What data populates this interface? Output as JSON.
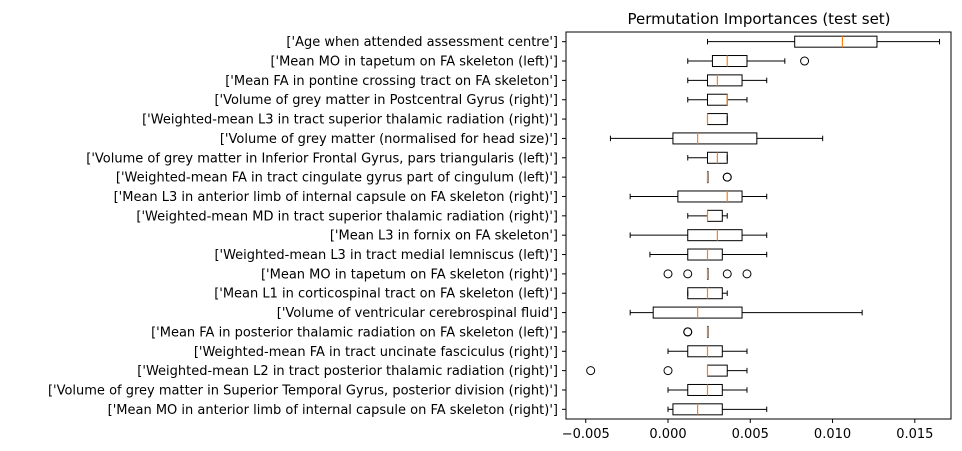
{
  "chart_data": {
    "type": "boxplot",
    "orientation": "horizontal",
    "title": "Permutation Importances (test set)",
    "xlabel": "",
    "ylabel": "",
    "xlim": [
      -0.0062,
      0.0172
    ],
    "x_ticks": [
      -0.005,
      0.0,
      0.005,
      0.01,
      0.015
    ],
    "x_tick_labels": [
      "−0.005",
      "0.000",
      "0.005",
      "0.010",
      "0.015"
    ],
    "grid": false,
    "box_color": "#000000",
    "median_color": "#ff7f0e",
    "categories": [
      "['Age when attended assessment centre']",
      "['Mean MO in tapetum on FA skeleton (left)']",
      "['Mean FA in pontine crossing tract on FA skeleton']",
      "['Volume of grey matter in Postcentral Gyrus (right)']",
      "['Weighted-mean L3 in tract superior thalamic radiation (right)']",
      "['Volume of grey matter (normalised for head size)']",
      "['Volume of grey matter in Inferior Frontal Gyrus, pars triangularis (left)']",
      "['Weighted-mean FA in tract cingulate gyrus part of cingulum (left)']",
      "['Mean L3 in anterior limb of internal capsule on FA skeleton (right)']",
      "['Weighted-mean MD in tract superior thalamic radiation (right)']",
      "['Mean L3 in fornix on FA skeleton']",
      "['Weighted-mean L3 in tract medial lemniscus (left)']",
      "['Mean MO in tapetum on FA skeleton (right)']",
      "['Mean L1 in corticospinal tract on FA skeleton (left)']",
      "['Volume of ventricular cerebrospinal fluid']",
      "['Mean FA in posterior thalamic radiation on FA skeleton (left)']",
      "['Weighted-mean FA in tract uncinate fasciculus (right)']",
      "['Weighted-mean L2 in tract posterior thalamic radiation (right)']",
      "['Volume of grey matter in Superior Temporal Gyrus, posterior division (right)']",
      "['Mean MO in anterior limb of internal capsule on FA skeleton (right)']"
    ],
    "boxes": [
      {
        "whisker_low": 0.0024,
        "q1": 0.0077,
        "median": 0.0106,
        "q3": 0.0127,
        "whisker_high": 0.0165,
        "outliers": []
      },
      {
        "whisker_low": 0.0012,
        "q1": 0.0027,
        "median": 0.0036,
        "q3": 0.0048,
        "whisker_high": 0.0071,
        "outliers": [
          0.0083
        ]
      },
      {
        "whisker_low": 0.0012,
        "q1": 0.0024,
        "median": 0.003,
        "q3": 0.0045,
        "whisker_high": 0.006,
        "outliers": []
      },
      {
        "whisker_low": 0.0012,
        "q1": 0.0024,
        "median": 0.0036,
        "q3": 0.0036,
        "whisker_high": 0.0048,
        "outliers": []
      },
      {
        "whisker_low": 0.0024,
        "q1": 0.0024,
        "median": 0.0024,
        "q3": 0.0036,
        "whisker_high": 0.0036,
        "outliers": []
      },
      {
        "whisker_low": -0.0035,
        "q1": 0.0003,
        "median": 0.0018,
        "q3": 0.0054,
        "whisker_high": 0.0094,
        "outliers": []
      },
      {
        "whisker_low": 0.0012,
        "q1": 0.0024,
        "median": 0.003,
        "q3": 0.0036,
        "whisker_high": 0.0036,
        "outliers": []
      },
      {
        "whisker_low": 0.0024,
        "q1": 0.0024,
        "median": 0.0024,
        "q3": 0.0024,
        "whisker_high": 0.0024,
        "outliers": [
          0.0036,
          0.0036
        ]
      },
      {
        "whisker_low": -0.0023,
        "q1": 0.0006,
        "median": 0.0036,
        "q3": 0.0045,
        "whisker_high": 0.006,
        "outliers": []
      },
      {
        "whisker_low": 0.0012,
        "q1": 0.0024,
        "median": 0.0024,
        "q3": 0.0033,
        "whisker_high": 0.0036,
        "outliers": []
      },
      {
        "whisker_low": -0.0023,
        "q1": 0.0012,
        "median": 0.003,
        "q3": 0.0045,
        "whisker_high": 0.006,
        "outliers": []
      },
      {
        "whisker_low": -0.0011,
        "q1": 0.0012,
        "median": 0.0024,
        "q3": 0.0033,
        "whisker_high": 0.006,
        "outliers": []
      },
      {
        "whisker_low": 0.0024,
        "q1": 0.0024,
        "median": 0.0024,
        "q3": 0.0024,
        "whisker_high": 0.0024,
        "outliers": [
          0.0,
          0.0012,
          0.0036,
          0.0048
        ]
      },
      {
        "whisker_low": 0.0012,
        "q1": 0.0012,
        "median": 0.0024,
        "q3": 0.0033,
        "whisker_high": 0.0036,
        "outliers": []
      },
      {
        "whisker_low": -0.0023,
        "q1": -0.0009,
        "median": 0.0018,
        "q3": 0.0045,
        "whisker_high": 0.0118,
        "outliers": []
      },
      {
        "whisker_low": 0.0024,
        "q1": 0.0024,
        "median": 0.0024,
        "q3": 0.0024,
        "whisker_high": 0.0024,
        "outliers": [
          0.0012,
          0.0012
        ]
      },
      {
        "whisker_low": 0.0,
        "q1": 0.0012,
        "median": 0.0024,
        "q3": 0.0033,
        "whisker_high": 0.0048,
        "outliers": []
      },
      {
        "whisker_low": 0.0024,
        "q1": 0.0024,
        "median": 0.0024,
        "q3": 0.0036,
        "whisker_high": 0.0048,
        "outliers": [
          -0.0047,
          0.0
        ]
      },
      {
        "whisker_low": 0.0,
        "q1": 0.0012,
        "median": 0.0024,
        "q3": 0.0033,
        "whisker_high": 0.0048,
        "outliers": []
      },
      {
        "whisker_low": 0.0,
        "q1": 0.0003,
        "median": 0.0018,
        "q3": 0.0033,
        "whisker_high": 0.006,
        "outliers": []
      }
    ]
  }
}
